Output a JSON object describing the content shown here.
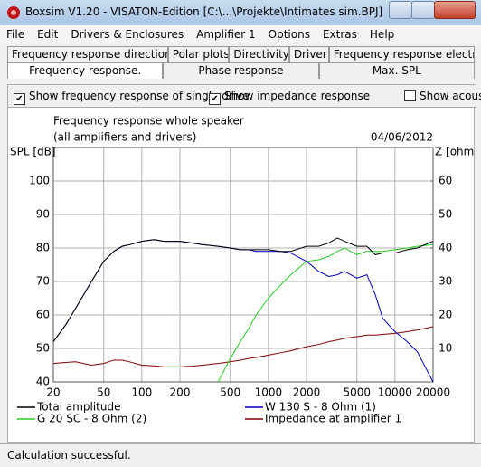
{
  "window": {
    "title": "Boxsim V1.20 - VISATON-Edition [C:\\...\\Projekte\\Intimates sim.BPJ]"
  },
  "menu": [
    "File",
    "Edit",
    "Drivers & Enclosures",
    "Amplifier 1",
    "Options",
    "Extras",
    "Help"
  ],
  "tabs_row1": [
    "Frequency response directions",
    "Polar plots",
    "Directivity",
    "Driver",
    "Frequency response electr.."
  ],
  "tabs_row2": [
    "Frequency response.",
    "Phase response",
    "Max. SPL"
  ],
  "checkboxes": [
    {
      "label": "Show frequency response of single drive",
      "checked": true
    },
    {
      "label": "Show impedance response",
      "checked": true
    },
    {
      "label": "Show acous",
      "checked": false
    }
  ],
  "chart_data": {
    "type": "line",
    "title": "Frequency response whole speaker",
    "subtitle": "(all amplifiers and drivers)",
    "date": "04/06/2012",
    "ylabel": "SPL [dB]",
    "y2label": "Z [ohm]",
    "log_x": true,
    "grid": true,
    "x": [
      20,
      25,
      30,
      40,
      50,
      60,
      70,
      80,
      100,
      125,
      150,
      200,
      250,
      300,
      400,
      500,
      600,
      700,
      800,
      1000,
      1250,
      1500,
      2000,
      2500,
      3000,
      3500,
      4000,
      5000,
      6000,
      7000,
      8000,
      10000,
      12500,
      15000,
      20000
    ],
    "xlim": [
      20,
      20000
    ],
    "xticks": [
      20,
      50,
      100,
      200,
      500,
      1000,
      2000,
      5000,
      10000,
      20000
    ],
    "ylim": [
      40,
      110
    ],
    "yticks": [
      40,
      50,
      60,
      70,
      80,
      90,
      100
    ],
    "y2lim": [
      0,
      70
    ],
    "y2ticks": [
      10,
      20,
      30,
      40,
      50,
      60
    ],
    "series": [
      {
        "name": "Total amplitude",
        "color": "#000000",
        "values": [
          52,
          57,
          62,
          70,
          76,
          79,
          80.5,
          81,
          82,
          82.5,
          82,
          82,
          81.5,
          81,
          80.5,
          80,
          79.5,
          79.5,
          79.5,
          79.5,
          79,
          79,
          80.5,
          80.5,
          81.5,
          83,
          82,
          80.5,
          80.5,
          78,
          78.5,
          78.5,
          79.5,
          80,
          82
        ]
      },
      {
        "name": "W 130 S - 8 Ohm (1)",
        "color": "#0000c0",
        "values": [
          52,
          57,
          62,
          70,
          76,
          79,
          80.5,
          81,
          82,
          82.5,
          82,
          82,
          81.5,
          81,
          80.5,
          80,
          79.5,
          79.5,
          79,
          79,
          79,
          78.5,
          76,
          73,
          71.5,
          72,
          73,
          71,
          72,
          66,
          59,
          55,
          52,
          49,
          40
        ]
      },
      {
        "name": "G 20 SC - 8 Ohm (2)",
        "color": "#22cc22",
        "values": [
          null,
          null,
          null,
          null,
          null,
          null,
          null,
          null,
          null,
          null,
          null,
          null,
          null,
          null,
          40,
          47,
          52,
          56,
          60,
          65,
          69,
          72,
          76,
          76.5,
          77.5,
          79,
          80,
          78,
          79,
          79,
          79,
          79.5,
          80,
          80.5,
          81
        ]
      },
      {
        "name": "Impedance at amplifier 1",
        "color": "#800000",
        "axis": "y2",
        "values": [
          5.5,
          5.8,
          6,
          5,
          5.5,
          6.5,
          6.5,
          6,
          5,
          4.8,
          4.5,
          4.5,
          4.7,
          5,
          5.5,
          6,
          6.5,
          7,
          7.3,
          8,
          8.7,
          9.3,
          10.5,
          11.2,
          12,
          12.5,
          13,
          13.5,
          14,
          14,
          14.2,
          14.5,
          15,
          15.5,
          16.5
        ]
      }
    ]
  },
  "status": "Calculation successful."
}
